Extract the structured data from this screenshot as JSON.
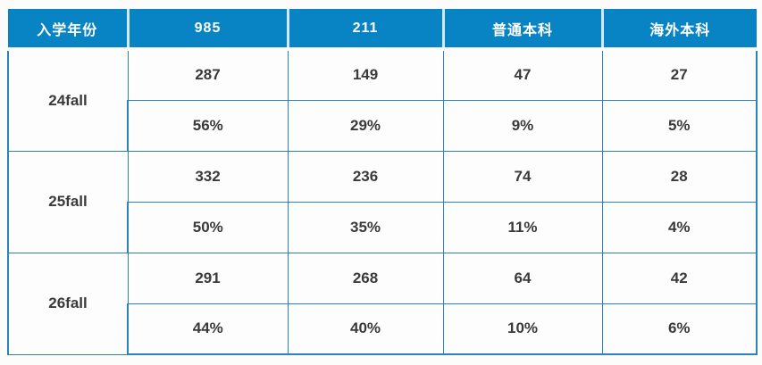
{
  "colors": {
    "header_bg": "#0883C4",
    "header_text": "#FFFFFF",
    "header_separator": "#D3EBF8",
    "body_border": "#2C83B8",
    "body_text": "#3A3A3A",
    "cell_bg": "#FDFDFD"
  },
  "table": {
    "columns": [
      "入学年份",
      "985",
      "211",
      "普通本科",
      "海外本科"
    ],
    "rows": [
      {
        "year": "24fall",
        "counts": [
          "287",
          "149",
          "47",
          "27"
        ],
        "percentages": [
          "56%",
          "29%",
          "9%",
          "5%"
        ]
      },
      {
        "year": "25fall",
        "counts": [
          "332",
          "236",
          "74",
          "28"
        ],
        "percentages": [
          "50%",
          "35%",
          "11%",
          "4%"
        ]
      },
      {
        "year": "26fall",
        "counts": [
          "291",
          "268",
          "64",
          "42"
        ],
        "percentages": [
          "44%",
          "40%",
          "10%",
          "6%"
        ]
      }
    ]
  },
  "chart_data": {
    "type": "table",
    "title": "",
    "categories": [
      "24fall",
      "25fall",
      "26fall"
    ],
    "series": [
      {
        "name": "985",
        "counts": [
          287,
          332,
          291
        ],
        "percentages": [
          "56%",
          "50%",
          "44%"
        ]
      },
      {
        "name": "211",
        "counts": [
          149,
          236,
          268
        ],
        "percentages": [
          "29%",
          "35%",
          "40%"
        ]
      },
      {
        "name": "普通本科",
        "counts": [
          47,
          74,
          64
        ],
        "percentages": [
          "9%",
          "11%",
          "10%"
        ]
      },
      {
        "name": "海外本科",
        "counts": [
          27,
          28,
          42
        ],
        "percentages": [
          "5%",
          "4%",
          "6%"
        ]
      }
    ],
    "row_structure": "each enrollment-year group has two sub-rows: absolute count and percentage share"
  }
}
